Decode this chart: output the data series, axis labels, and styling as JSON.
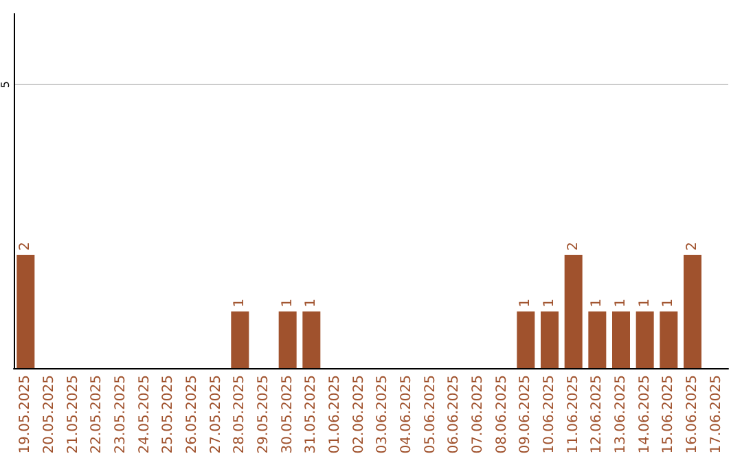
{
  "chart_data": {
    "type": "bar",
    "categories": [
      "19.05.2025",
      "20.05.2025",
      "21.05.2025",
      "22.05.2025",
      "23.05.2025",
      "24.05.2025",
      "25.05.2025",
      "26.05.2025",
      "27.05.2025",
      "28.05.2025",
      "29.05.2025",
      "30.05.2025",
      "31.05.2025",
      "01.06.2025",
      "02.06.2025",
      "03.06.2025",
      "04.06.2025",
      "05.06.2025",
      "06.06.2025",
      "07.06.2025",
      "08.06.2025",
      "09.06.2025",
      "10.06.2025",
      "11.06.2025",
      "12.06.2025",
      "13.06.2025",
      "14.06.2025",
      "15.06.2025",
      "16.06.2025",
      "17.06.2025"
    ],
    "values": [
      2,
      0,
      0,
      0,
      0,
      0,
      0,
      0,
      0,
      1,
      0,
      1,
      1,
      0,
      0,
      0,
      0,
      0,
      0,
      0,
      0,
      1,
      1,
      2,
      1,
      1,
      1,
      1,
      2,
      0
    ],
    "value_labels": [
      "2",
      null,
      null,
      null,
      null,
      null,
      null,
      null,
      null,
      "1",
      null,
      "1",
      "1",
      null,
      null,
      null,
      null,
      null,
      null,
      null,
      null,
      "1",
      "1",
      "2",
      "1",
      "1",
      "1",
      "1",
      "2",
      null
    ],
    "color": "#a0522d",
    "ylim": [
      0,
      6.25
    ],
    "yticks": [
      {
        "value": 0,
        "label": null
      },
      5
    ],
    "grid": "y"
  }
}
